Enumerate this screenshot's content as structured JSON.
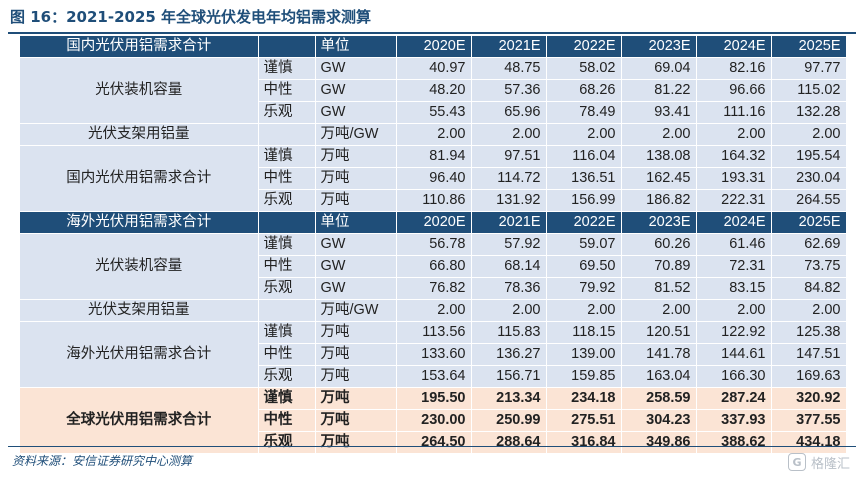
{
  "title": "图 16：2021-2025 年全球光伏发电年均铝需求测算",
  "header": {
    "unit_label": "单位",
    "years": [
      "2020E",
      "2021E",
      "2022E",
      "2023E",
      "2024E",
      "2025E"
    ]
  },
  "domestic": {
    "section_label": "国内光伏用铝需求合计",
    "capacity": {
      "label": "光伏装机容量",
      "rows": [
        {
          "scenario": "谨慎",
          "unit": "GW",
          "values": [
            "40.97",
            "48.75",
            "58.02",
            "69.04",
            "82.16",
            "97.77"
          ]
        },
        {
          "scenario": "中性",
          "unit": "GW",
          "values": [
            "48.20",
            "57.36",
            "68.26",
            "81.22",
            "96.66",
            "115.02"
          ]
        },
        {
          "scenario": "乐观",
          "unit": "GW",
          "values": [
            "55.43",
            "65.96",
            "78.49",
            "93.41",
            "111.16",
            "132.28"
          ]
        }
      ]
    },
    "bracket": {
      "label": "光伏支架用铝量",
      "unit": "万吨/GW",
      "values": [
        "2.00",
        "2.00",
        "2.00",
        "2.00",
        "2.00",
        "2.00"
      ]
    },
    "demand": {
      "label": "国内光伏用铝需求合计",
      "rows": [
        {
          "scenario": "谨慎",
          "unit": "万吨",
          "values": [
            "81.94",
            "97.51",
            "116.04",
            "138.08",
            "164.32",
            "195.54"
          ]
        },
        {
          "scenario": "中性",
          "unit": "万吨",
          "values": [
            "96.40",
            "114.72",
            "136.51",
            "162.45",
            "193.31",
            "230.04"
          ]
        },
        {
          "scenario": "乐观",
          "unit": "万吨",
          "values": [
            "110.86",
            "131.92",
            "156.99",
            "186.82",
            "222.31",
            "264.55"
          ]
        }
      ]
    }
  },
  "overseas": {
    "section_label": "海外光伏用铝需求合计",
    "capacity": {
      "label": "光伏装机容量",
      "rows": [
        {
          "scenario": "谨慎",
          "unit": "GW",
          "values": [
            "56.78",
            "57.92",
            "59.07",
            "60.26",
            "61.46",
            "62.69"
          ]
        },
        {
          "scenario": "中性",
          "unit": "GW",
          "values": [
            "66.80",
            "68.14",
            "69.50",
            "70.89",
            "72.31",
            "73.75"
          ]
        },
        {
          "scenario": "乐观",
          "unit": "GW",
          "values": [
            "76.82",
            "78.36",
            "79.92",
            "81.52",
            "83.15",
            "84.82"
          ]
        }
      ]
    },
    "bracket": {
      "label": "光伏支架用铝量",
      "unit": "万吨/GW",
      "values": [
        "2.00",
        "2.00",
        "2.00",
        "2.00",
        "2.00",
        "2.00"
      ]
    },
    "demand": {
      "label": "海外光伏用铝需求合计",
      "rows": [
        {
          "scenario": "谨慎",
          "unit": "万吨",
          "values": [
            "113.56",
            "115.83",
            "118.15",
            "120.51",
            "122.92",
            "125.38"
          ]
        },
        {
          "scenario": "中性",
          "unit": "万吨",
          "values": [
            "133.60",
            "136.27",
            "139.00",
            "141.78",
            "144.61",
            "147.51"
          ]
        },
        {
          "scenario": "乐观",
          "unit": "万吨",
          "values": [
            "153.64",
            "156.71",
            "159.85",
            "163.04",
            "166.30",
            "169.63"
          ]
        }
      ]
    }
  },
  "global": {
    "label": "全球光伏用铝需求合计",
    "rows": [
      {
        "scenario": "谨慎",
        "unit": "万吨",
        "values": [
          "195.50",
          "213.34",
          "234.18",
          "258.59",
          "287.24",
          "320.92"
        ]
      },
      {
        "scenario": "中性",
        "unit": "万吨",
        "values": [
          "230.00",
          "250.99",
          "275.51",
          "304.23",
          "337.93",
          "377.55"
        ]
      },
      {
        "scenario": "乐观",
        "unit": "万吨",
        "values": [
          "264.50",
          "288.64",
          "316.84",
          "349.86",
          "388.62",
          "434.18"
        ]
      }
    ]
  },
  "source": "资料来源：安信证券研究中心测算",
  "watermark": "格隆汇",
  "watermark_icon": "G-logo-icon",
  "colors": {
    "header_bg": "#1f4e79",
    "row_bg_blue": "#dbe3f0",
    "row_bg_pink": "#fbe4d5"
  }
}
